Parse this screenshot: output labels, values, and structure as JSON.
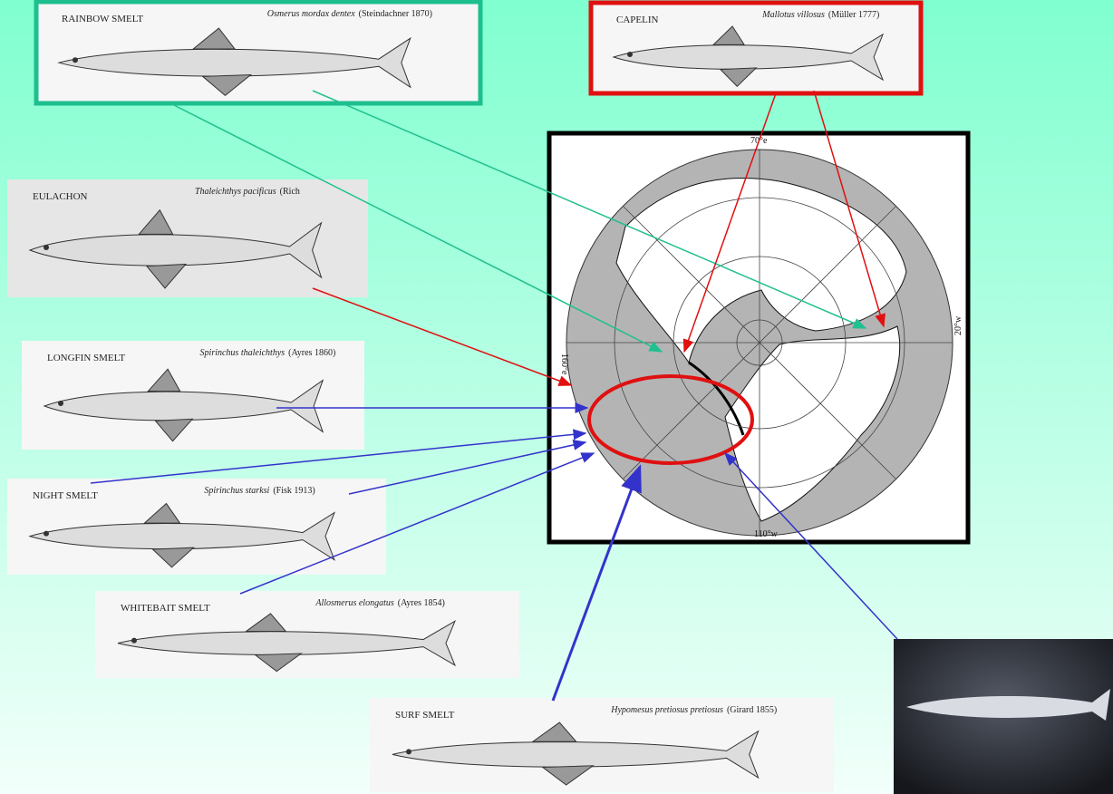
{
  "fish": [
    {
      "name": "RAINBOW SMELT",
      "scientific": "Osmerus mordax dentex",
      "author": "(Steindachner 1870)"
    },
    {
      "name": "CAPELIN",
      "scientific": "Mallotus villosus",
      "author": "(Müller 1777)"
    },
    {
      "name": "EULACHON",
      "scientific": "Thaleichthys pacificus",
      "author": "(Rich"
    },
    {
      "name": "LONGFIN SMELT",
      "scientific": "Spirinchus thaleichthys",
      "author": "(Ayres 1860)"
    },
    {
      "name": "NIGHT SMELT",
      "scientific": "Spirinchus starksi",
      "author": "(Fisk 1913)"
    },
    {
      "name": "WHITEBAIT SMELT",
      "scientific": "Allosmerus elongatus",
      "author": "(Ayres 1854)"
    },
    {
      "name": "SURF SMELT",
      "scientific": "Hypomesus pretiosus pretiosus",
      "author": "(Girard 1855)"
    }
  ],
  "map": {
    "labels": [
      "70°e",
      "20°w",
      "160°e",
      "110°w"
    ]
  }
}
